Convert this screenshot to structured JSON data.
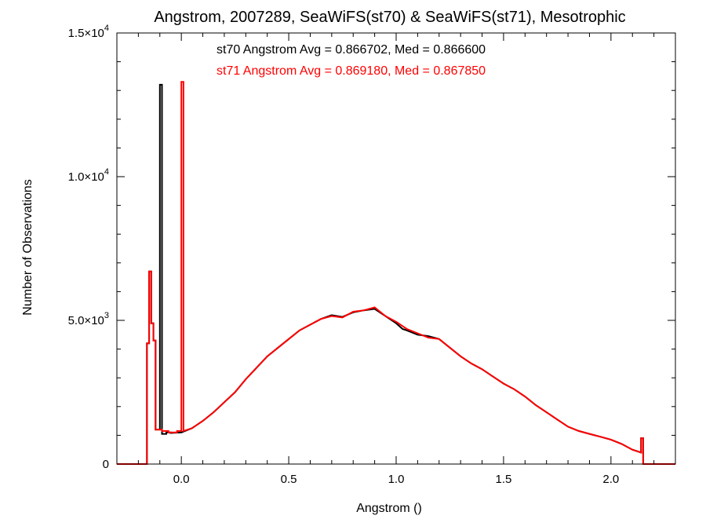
{
  "chart_data": {
    "type": "line",
    "title": "Angstrom, 2007289, SeaWiFS(st70) & SeaWiFS(st71), Mesotrophic",
    "xlabel": "Angstrom ()",
    "ylabel": "Number of Observations",
    "xlim": [
      -0.3,
      2.3
    ],
    "ylim": [
      0,
      15000
    ],
    "x_ticks": [
      {
        "value": 0.0,
        "label": "0.0"
      },
      {
        "value": 0.5,
        "label": "0.5"
      },
      {
        "value": 1.0,
        "label": "1.0"
      },
      {
        "value": 1.5,
        "label": "1.5"
      },
      {
        "value": 2.0,
        "label": "2.0"
      }
    ],
    "y_ticks": [
      {
        "value": 0,
        "mantissa": "0",
        "exp": ""
      },
      {
        "value": 5000,
        "mantissa": "5.0×10",
        "exp": "3"
      },
      {
        "value": 10000,
        "mantissa": "1.0×10",
        "exp": "4"
      },
      {
        "value": 15000,
        "mantissa": "1.5×10",
        "exp": "4"
      }
    ],
    "annotations": [
      {
        "text": "st70 Angstrom Avg = 0.866702, Med = 0.866600",
        "color": "#000000"
      },
      {
        "text": "st71 Angstrom Avg = 0.869180, Med = 0.867850",
        "color": "#ff0000"
      }
    ],
    "grid": false,
    "series": [
      {
        "color": "#000000",
        "points": [
          [
            -0.3,
            0
          ],
          [
            -0.16,
            0
          ],
          [
            -0.16,
            4200
          ],
          [
            -0.15,
            4200
          ],
          [
            -0.15,
            6700
          ],
          [
            -0.14,
            6700
          ],
          [
            -0.14,
            4900
          ],
          [
            -0.13,
            4900
          ],
          [
            -0.13,
            4300
          ],
          [
            -0.12,
            4300
          ],
          [
            -0.12,
            1200
          ],
          [
            -0.1,
            1200
          ],
          [
            -0.1,
            13200
          ],
          [
            -0.09,
            13200
          ],
          [
            -0.09,
            1050
          ],
          [
            -0.07,
            1050
          ],
          [
            -0.07,
            1100
          ],
          [
            -0.05,
            1100
          ],
          [
            -0.05,
            1080
          ],
          [
            0.0,
            1100
          ],
          [
            0.05,
            1250
          ],
          [
            0.1,
            1500
          ],
          [
            0.15,
            1800
          ],
          [
            0.2,
            2150
          ],
          [
            0.25,
            2500
          ],
          [
            0.3,
            2950
          ],
          [
            0.35,
            3350
          ],
          [
            0.4,
            3750
          ],
          [
            0.45,
            4050
          ],
          [
            0.5,
            4350
          ],
          [
            0.55,
            4650
          ],
          [
            0.6,
            4850
          ],
          [
            0.65,
            5050
          ],
          [
            0.7,
            5180
          ],
          [
            0.75,
            5120
          ],
          [
            0.8,
            5280
          ],
          [
            0.85,
            5350
          ],
          [
            0.9,
            5400
          ],
          [
            0.95,
            5150
          ],
          [
            1.0,
            4900
          ],
          [
            1.03,
            4700
          ],
          [
            1.05,
            4650
          ],
          [
            1.1,
            4500
          ],
          [
            1.15,
            4450
          ],
          [
            1.2,
            4350
          ],
          [
            1.25,
            4050
          ],
          [
            1.3,
            3750
          ],
          [
            1.35,
            3500
          ],
          [
            1.4,
            3300
          ],
          [
            1.45,
            3050
          ],
          [
            1.5,
            2800
          ],
          [
            1.55,
            2600
          ],
          [
            1.6,
            2350
          ],
          [
            1.65,
            2050
          ],
          [
            1.7,
            1800
          ],
          [
            1.75,
            1550
          ],
          [
            1.8,
            1300
          ],
          [
            1.85,
            1150
          ],
          [
            1.9,
            1050
          ],
          [
            1.95,
            950
          ],
          [
            2.0,
            850
          ],
          [
            2.05,
            700
          ],
          [
            2.1,
            500
          ],
          [
            2.12,
            450
          ],
          [
            2.14,
            400
          ],
          [
            2.14,
            900
          ],
          [
            2.15,
            900
          ],
          [
            2.15,
            0
          ],
          [
            2.3,
            0
          ]
        ]
      },
      {
        "color": "#ff0000",
        "points": [
          [
            -0.3,
            0
          ],
          [
            -0.16,
            0
          ],
          [
            -0.16,
            4200
          ],
          [
            -0.15,
            4200
          ],
          [
            -0.15,
            6700
          ],
          [
            -0.14,
            6700
          ],
          [
            -0.14,
            4900
          ],
          [
            -0.13,
            4900
          ],
          [
            -0.13,
            4300
          ],
          [
            -0.12,
            4300
          ],
          [
            -0.12,
            1200
          ],
          [
            -0.09,
            1200
          ],
          [
            -0.09,
            1150
          ],
          [
            -0.06,
            1150
          ],
          [
            -0.06,
            1100
          ],
          [
            -0.02,
            1100
          ],
          [
            -0.02,
            1150
          ],
          [
            0.0,
            1150
          ],
          [
            0.0,
            13300
          ],
          [
            0.01,
            13300
          ],
          [
            0.01,
            1150
          ],
          [
            0.05,
            1250
          ],
          [
            0.1,
            1500
          ],
          [
            0.15,
            1800
          ],
          [
            0.2,
            2150
          ],
          [
            0.25,
            2500
          ],
          [
            0.3,
            2950
          ],
          [
            0.35,
            3350
          ],
          [
            0.4,
            3750
          ],
          [
            0.45,
            4050
          ],
          [
            0.5,
            4350
          ],
          [
            0.55,
            4650
          ],
          [
            0.6,
            4850
          ],
          [
            0.65,
            5050
          ],
          [
            0.7,
            5150
          ],
          [
            0.75,
            5100
          ],
          [
            0.8,
            5300
          ],
          [
            0.85,
            5350
          ],
          [
            0.9,
            5450
          ],
          [
            0.95,
            5150
          ],
          [
            1.0,
            4950
          ],
          [
            1.03,
            4800
          ],
          [
            1.05,
            4700
          ],
          [
            1.1,
            4550
          ],
          [
            1.15,
            4400
          ],
          [
            1.2,
            4350
          ],
          [
            1.25,
            4050
          ],
          [
            1.3,
            3750
          ],
          [
            1.35,
            3500
          ],
          [
            1.4,
            3300
          ],
          [
            1.45,
            3050
          ],
          [
            1.5,
            2800
          ],
          [
            1.55,
            2600
          ],
          [
            1.6,
            2350
          ],
          [
            1.65,
            2050
          ],
          [
            1.7,
            1800
          ],
          [
            1.75,
            1550
          ],
          [
            1.8,
            1300
          ],
          [
            1.85,
            1150
          ],
          [
            1.9,
            1050
          ],
          [
            1.95,
            950
          ],
          [
            2.0,
            850
          ],
          [
            2.05,
            700
          ],
          [
            2.1,
            500
          ],
          [
            2.12,
            450
          ],
          [
            2.14,
            400
          ],
          [
            2.14,
            900
          ],
          [
            2.15,
            900
          ],
          [
            2.15,
            0
          ],
          [
            2.3,
            0
          ]
        ]
      }
    ]
  }
}
